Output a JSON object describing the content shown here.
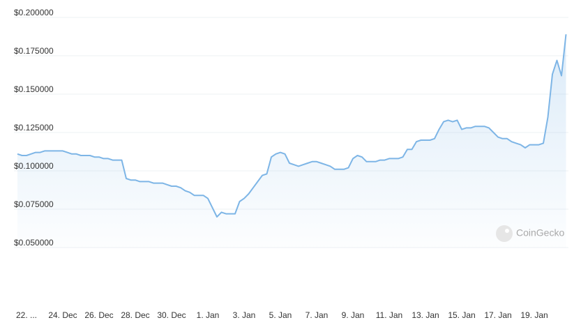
{
  "chart_data": {
    "type": "area",
    "watermark": "CoinGecko",
    "categories": [
      null,
      null,
      "22. ...",
      null,
      null,
      null,
      null,
      null,
      null,
      null,
      "24. Dec",
      null,
      null,
      null,
      null,
      null,
      null,
      null,
      "26. Dec",
      null,
      null,
      null,
      null,
      null,
      null,
      null,
      "28. Dec",
      null,
      null,
      null,
      null,
      null,
      null,
      null,
      "30. Dec",
      null,
      null,
      null,
      null,
      null,
      null,
      null,
      "1. Jan",
      null,
      null,
      null,
      null,
      null,
      null,
      null,
      "3. Jan",
      null,
      null,
      null,
      null,
      null,
      null,
      null,
      "5. Jan",
      null,
      null,
      null,
      null,
      null,
      null,
      null,
      "7. Jan",
      null,
      null,
      null,
      null,
      null,
      null,
      null,
      "9. Jan",
      null,
      null,
      null,
      null,
      null,
      null,
      null,
      "11. Jan",
      null,
      null,
      null,
      null,
      null,
      null,
      null,
      "13. Jan",
      null,
      null,
      null,
      null,
      null,
      null,
      null,
      "15. Jan",
      null,
      null,
      null,
      null,
      null,
      null,
      null,
      "17. Jan",
      null,
      null,
      null,
      null,
      null,
      null,
      null,
      "19. Jan",
      null,
      null,
      null,
      null,
      null,
      null,
      null
    ],
    "values": [
      0.111,
      0.11,
      0.11,
      0.111,
      0.112,
      0.112,
      0.113,
      0.113,
      0.113,
      0.113,
      0.113,
      0.112,
      0.111,
      0.111,
      0.11,
      0.11,
      0.11,
      0.109,
      0.109,
      0.108,
      0.108,
      0.107,
      0.107,
      0.107,
      0.095,
      0.094,
      0.094,
      0.093,
      0.093,
      0.093,
      0.092,
      0.092,
      0.092,
      0.091,
      0.09,
      0.09,
      0.089,
      0.087,
      0.086,
      0.084,
      0.084,
      0.084,
      0.082,
      0.076,
      0.07,
      0.073,
      0.072,
      0.072,
      0.072,
      0.08,
      0.082,
      0.085,
      0.089,
      0.093,
      0.097,
      0.098,
      0.109,
      0.111,
      0.112,
      0.111,
      0.105,
      0.104,
      0.103,
      0.104,
      0.105,
      0.106,
      0.106,
      0.105,
      0.104,
      0.103,
      0.101,
      0.101,
      0.101,
      0.102,
      0.108,
      0.11,
      0.109,
      0.106,
      0.106,
      0.106,
      0.107,
      0.107,
      0.108,
      0.108,
      0.108,
      0.109,
      0.114,
      0.114,
      0.119,
      0.12,
      0.12,
      0.12,
      0.121,
      0.127,
      0.132,
      0.133,
      0.132,
      0.133,
      0.127,
      0.128,
      0.128,
      0.129,
      0.129,
      0.129,
      0.128,
      0.125,
      0.122,
      0.121,
      0.121,
      0.119,
      0.118,
      0.117,
      0.115,
      0.117,
      0.117,
      0.117,
      0.118,
      0.135,
      0.163,
      0.172,
      0.162,
      0.189
    ],
    "color": "#7db5e6",
    "ylim": [
      0.05,
      0.2
    ],
    "yticks": [
      {
        "value": 0.05,
        "label": "$0.050000"
      },
      {
        "value": 0.075,
        "label": "$0.075000"
      },
      {
        "value": 0.1,
        "label": "$0.100000"
      },
      {
        "value": 0.125,
        "label": "$0.125000"
      },
      {
        "value": 0.15,
        "label": "$0.150000"
      },
      {
        "value": 0.175,
        "label": "$0.175000"
      },
      {
        "value": 0.2,
        "label": "$0.200000"
      }
    ],
    "grid": true
  }
}
